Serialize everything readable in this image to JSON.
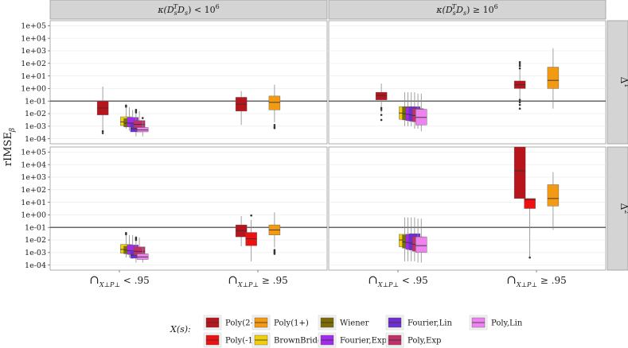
{
  "chart_data": {
    "type": "boxplot",
    "title": "",
    "ylabel": "rIMSE_β",
    "y_scale": "log10",
    "ylim_log10": [
      -4.4,
      5.4
    ],
    "y_ticks": [
      {
        "exp": 5,
        "label": "1e+05"
      },
      {
        "exp": 4,
        "label": "1e+04"
      },
      {
        "exp": 3,
        "label": "1e+03"
      },
      {
        "exp": 2,
        "label": "1e+02"
      },
      {
        "exp": 1,
        "label": "1e+01"
      },
      {
        "exp": 0,
        "label": "1e+00"
      },
      {
        "exp": -1,
        "label": "1e-01"
      },
      {
        "exp": -2,
        "label": "1e-02"
      },
      {
        "exp": -3,
        "label": "1e-03"
      },
      {
        "exp": -4,
        "label": "1e-04"
      }
    ],
    "reference_line_log10": -1,
    "col_facets": [
      {
        "prefix": "κ(D",
        "sub": "s",
        "sup": "T",
        "mid": "D",
        "sub2": "s",
        "op": "<",
        "suffix": "10",
        "suffix_sup": "6"
      },
      {
        "prefix": "κ(D",
        "sub": "s",
        "sup": "T",
        "mid": "D",
        "sub2": "s",
        "op": "≥",
        "suffix": "10",
        "suffix_sup": "6"
      }
    ],
    "row_facets": [
      {
        "base": "Δ",
        "sup": "1"
      },
      {
        "base": "Δ",
        "sup": "2"
      }
    ],
    "x_categories": [
      {
        "symbol": "∩",
        "sub": "X⊥P⊥",
        "op": "< .95"
      },
      {
        "symbol": "∩",
        "sub": "X⊥P⊥",
        "op": "≥ .95"
      }
    ],
    "legend": {
      "title": "X(s):",
      "entries": [
        {
          "name": "Poly(2+)",
          "color": "#b8141c"
        },
        {
          "name": "Poly(-1)",
          "color": "#ee1111"
        },
        {
          "name": "Poly(1+)",
          "color": "#f39a12"
        },
        {
          "name": "BrownBridge",
          "color": "#f2cf0c"
        },
        {
          "name": "Wiener",
          "color": "#7c6c08"
        },
        {
          "name": "Fourier,Exp",
          "color": "#a32bee"
        },
        {
          "name": "Fourier,Lin",
          "color": "#6f2ed0"
        },
        {
          "name": "Poly,Exp",
          "color": "#c0306a"
        },
        {
          "name": "Poly,Lin",
          "color": "#ee82ee"
        }
      ]
    },
    "panels": [
      {
        "col": 0,
        "row": 0,
        "boxes": [
          {
            "series": "Poly(2+)",
            "x": 0,
            "offset": -0.5,
            "lo": -3.6,
            "q1": -2.1,
            "med": -1.55,
            "q3": -1.0,
            "hi": 0.15,
            "outliers": [
              -3.4,
              -3.55
            ]
          },
          {
            "series": "BrownBridge",
            "x": 0,
            "offset": 0.2,
            "lo": -3.2,
            "q1": -2.95,
            "med": -2.65,
            "q3": -2.25,
            "hi": -1.55,
            "outliers": [
              -1.35,
              -1.45
            ]
          },
          {
            "series": "Wiener",
            "x": 0,
            "offset": 0.3,
            "lo": -3.35,
            "q1": -3.05,
            "med": -2.75,
            "q3": -2.4,
            "hi": -1.5,
            "outliers": []
          },
          {
            "series": "Fourier,Exp",
            "x": 0,
            "offset": 0.4,
            "lo": -3.4,
            "q1": -3.05,
            "med": -2.75,
            "q3": -2.3,
            "hi": -1.7,
            "outliers": []
          },
          {
            "series": "Fourier,Lin",
            "x": 0,
            "offset": 0.5,
            "lo": -3.8,
            "q1": -3.45,
            "med": -3.2,
            "q3": -2.8,
            "hi": -2.0,
            "outliers": [
              -1.7,
              -1.8,
              -1.9
            ]
          },
          {
            "series": "Poly,Exp",
            "x": 0,
            "offset": 0.6,
            "lo": -3.4,
            "q1": -3.15,
            "med": -2.85,
            "q3": -2.55,
            "hi": -1.8,
            "outliers": []
          },
          {
            "series": "Poly,Lin",
            "x": 0,
            "offset": 0.7,
            "lo": -3.8,
            "q1": -3.45,
            "med": -3.3,
            "q3": -3.1,
            "hi": -2.6,
            "outliers": [
              -2.35
            ]
          },
          {
            "series": "Poly(2+)",
            "x": 1,
            "offset": -0.5,
            "lo": -2.9,
            "q1": -1.8,
            "med": -1.25,
            "q3": -0.7,
            "hi": -0.2,
            "outliers": []
          },
          {
            "series": "Poly(1+)",
            "x": 1,
            "offset": 0.5,
            "lo": -2.7,
            "q1": -1.7,
            "med": -1.1,
            "q3": -0.6,
            "hi": 0.3,
            "outliers": [
              -2.9,
              -3.05,
              -3.15
            ]
          }
        ]
      },
      {
        "col": 1,
        "row": 0,
        "boxes": [
          {
            "series": "Poly(2+)",
            "x": 0,
            "offset": -0.5,
            "lo": -1.9,
            "q1": -0.9,
            "med": -0.55,
            "q3": -0.3,
            "hi": 0.4,
            "outliers": [
              -1.55,
              -1.7,
              -2.1,
              -2.5
            ]
          },
          {
            "series": "BrownBridge",
            "x": 0,
            "offset": 0.2,
            "lo": -3.0,
            "q1": -2.45,
            "med": -1.95,
            "q3": -1.45,
            "hi": -0.3,
            "outliers": []
          },
          {
            "series": "Wiener",
            "x": 0,
            "offset": 0.3,
            "lo": -3.0,
            "q1": -2.5,
            "med": -2.0,
            "q3": -1.45,
            "hi": -0.3,
            "outliers": []
          },
          {
            "series": "Fourier,Exp",
            "x": 0,
            "offset": 0.4,
            "lo": -3.0,
            "q1": -2.55,
            "med": -2.05,
            "q3": -1.5,
            "hi": -0.3,
            "outliers": []
          },
          {
            "series": "Fourier,Lin",
            "x": 0,
            "offset": 0.5,
            "lo": -3.2,
            "q1": -2.6,
            "med": -2.1,
            "q3": -1.45,
            "hi": -0.3,
            "outliers": []
          },
          {
            "series": "Poly,Exp",
            "x": 0,
            "offset": 0.6,
            "lo": -3.2,
            "q1": -2.65,
            "med": -2.15,
            "q3": -1.6,
            "hi": -0.4,
            "outliers": []
          },
          {
            "series": "Poly,Lin",
            "x": 0,
            "offset": 0.7,
            "lo": -3.4,
            "q1": -2.9,
            "med": -2.3,
            "q3": -1.65,
            "hi": -0.4,
            "outliers": []
          },
          {
            "series": "Poly(2+)",
            "x": 1,
            "offset": -0.5,
            "lo": -0.9,
            "q1": 0.0,
            "med": 0.3,
            "q3": 0.6,
            "hi": 1.5,
            "outliers": [
              -0.9,
              -1.1,
              -1.3,
              -1.6,
              1.6,
              1.8,
              1.95,
              2.1
            ]
          },
          {
            "series": "Poly(1+)",
            "x": 1,
            "offset": 0.5,
            "lo": -1.6,
            "q1": 0.0,
            "med": 0.65,
            "q3": 1.7,
            "hi": 3.2,
            "outliers": []
          }
        ]
      },
      {
        "col": 0,
        "row": 1,
        "boxes": [
          {
            "series": "BrownBridge",
            "x": 0,
            "offset": 0.2,
            "lo": -3.4,
            "q1": -3.05,
            "med": -2.75,
            "q3": -2.35,
            "hi": -1.6,
            "outliers": [
              -1.45,
              -1.55
            ]
          },
          {
            "series": "Wiener",
            "x": 0,
            "offset": 0.3,
            "lo": -3.4,
            "q1": -3.1,
            "med": -2.8,
            "q3": -2.5,
            "hi": -1.6,
            "outliers": []
          },
          {
            "series": "Fourier,Exp",
            "x": 0,
            "offset": 0.4,
            "lo": -3.5,
            "q1": -3.15,
            "med": -2.85,
            "q3": -2.4,
            "hi": -1.6,
            "outliers": []
          },
          {
            "series": "Fourier,Lin",
            "x": 0,
            "offset": 0.5,
            "lo": -3.8,
            "q1": -3.45,
            "med": -3.2,
            "q3": -2.85,
            "hi": -2.0,
            "outliers": [
              -1.8,
              -1.9,
              -2.0
            ]
          },
          {
            "series": "Poly,Exp",
            "x": 0,
            "offset": 0.6,
            "lo": -3.5,
            "q1": -3.2,
            "med": -2.9,
            "q3": -2.55,
            "hi": -1.8,
            "outliers": []
          },
          {
            "series": "Poly,Lin",
            "x": 0,
            "offset": 0.7,
            "lo": -3.8,
            "q1": -3.55,
            "med": -3.35,
            "q3": -3.1,
            "hi": -2.6,
            "outliers": []
          },
          {
            "series": "Poly(2+)",
            "x": 1,
            "offset": -0.5,
            "lo": -2.5,
            "q1": -1.75,
            "med": -1.25,
            "q3": -0.8,
            "hi": -0.1,
            "outliers": []
          },
          {
            "series": "Poly(-1)",
            "x": 1,
            "offset": -0.2,
            "lo": -3.7,
            "q1": -2.45,
            "med": -1.9,
            "q3": -1.4,
            "hi": -0.4,
            "outliers": [
              -0.05
            ]
          },
          {
            "series": "Poly(1+)",
            "x": 1,
            "offset": 0.5,
            "lo": -2.6,
            "q1": -1.6,
            "med": -1.2,
            "q3": -0.8,
            "hi": 0.2,
            "outliers": [
              -2.8,
              -2.9,
              -3.0,
              -3.1
            ]
          }
        ]
      },
      {
        "col": 1,
        "row": 1,
        "boxes": [
          {
            "series": "BrownBridge",
            "x": 0,
            "offset": 0.2,
            "lo": -3.7,
            "q1": -2.55,
            "med": -2.0,
            "q3": -1.55,
            "hi": -0.2,
            "outliers": []
          },
          {
            "series": "Wiener",
            "x": 0,
            "offset": 0.3,
            "lo": -3.7,
            "q1": -2.65,
            "med": -2.15,
            "q3": -1.6,
            "hi": -0.2,
            "outliers": []
          },
          {
            "series": "Fourier,Exp",
            "x": 0,
            "offset": 0.4,
            "lo": -3.7,
            "q1": -2.75,
            "med": -2.2,
            "q3": -1.55,
            "hi": -0.2,
            "outliers": []
          },
          {
            "series": "Fourier,Lin",
            "x": 0,
            "offset": 0.5,
            "lo": -3.7,
            "q1": -2.8,
            "med": -2.25,
            "q3": -1.5,
            "hi": -0.2,
            "outliers": []
          },
          {
            "series": "Poly,Exp",
            "x": 0,
            "offset": 0.6,
            "lo": -3.8,
            "q1": -2.9,
            "med": -2.35,
            "q3": -1.75,
            "hi": -0.3,
            "outliers": []
          },
          {
            "series": "Poly,Lin",
            "x": 0,
            "offset": 0.7,
            "lo": -3.8,
            "q1": -3.0,
            "med": -2.45,
            "q3": -1.75,
            "hi": -0.3,
            "outliers": []
          },
          {
            "series": "Poly(2+)",
            "x": 1,
            "offset": -0.5,
            "lo": 1.3,
            "q1": 1.3,
            "med": 3.5,
            "q3": 5.4,
            "hi": 5.4,
            "outliers": []
          },
          {
            "series": "Poly(-1)",
            "x": 1,
            "offset": -0.2,
            "lo": -3.4,
            "q1": 0.5,
            "med": 1.2,
            "q3": 1.3,
            "hi": 1.3,
            "outliers": [
              -3.4
            ]
          },
          {
            "series": "Poly(1+)",
            "x": 1,
            "offset": 0.5,
            "lo": -1.2,
            "q1": 0.7,
            "med": 1.3,
            "q3": 2.4,
            "hi": 3.4,
            "outliers": []
          }
        ]
      }
    ]
  }
}
